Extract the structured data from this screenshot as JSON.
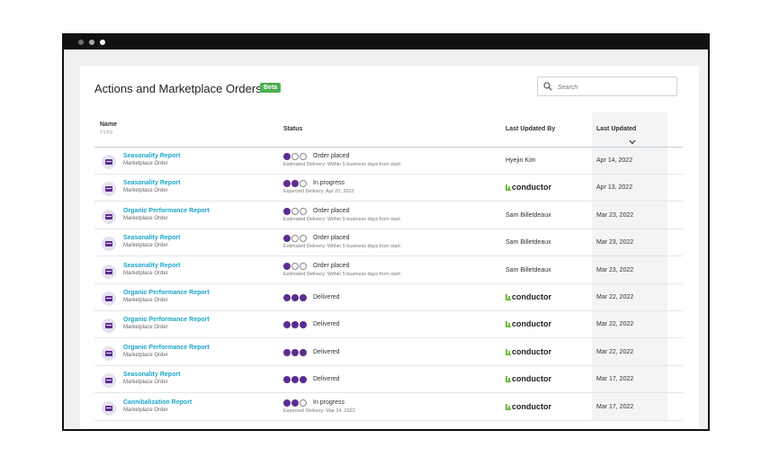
{
  "window": {
    "controls": [
      "close",
      "minimize",
      "maximize"
    ]
  },
  "page": {
    "title": "Actions and Marketplace Orders",
    "badge": "Beta"
  },
  "search": {
    "placeholder": "Search",
    "icon": "search-icon"
  },
  "table": {
    "columns": {
      "name": "Name",
      "type": "TYPE",
      "status": "Status",
      "last_updated_by": "Last Updated By",
      "last_updated": "Last Updated"
    },
    "sorted_by": "Last Updated",
    "rows": [
      {
        "name": "Seasonality Report",
        "type": "Marketplace Order",
        "progress": 1,
        "status": "Order placed",
        "detail": "Estimated Delivery: Within 5 business days from start",
        "updated_by": "Hyejin Kim",
        "updated_by_is_brand": false,
        "date": "Apr 14, 2022"
      },
      {
        "name": "Seasonality Report",
        "type": "Marketplace Order",
        "progress": 2,
        "status": "In progress",
        "detail": "Expected Delivery: Apr 20, 2022",
        "updated_by": "conductor",
        "updated_by_is_brand": true,
        "date": "Apr 13, 2022"
      },
      {
        "name": "Organic Performance Report",
        "type": "Marketplace Order",
        "progress": 1,
        "status": "Order placed",
        "detail": "Estimated Delivery: Within 5 business days from start",
        "updated_by": "Sam Billetdeaux",
        "updated_by_is_brand": false,
        "date": "Mar 23, 2022"
      },
      {
        "name": "Seasonality Report",
        "type": "Marketplace Order",
        "progress": 1,
        "status": "Order placed",
        "detail": "Estimated Delivery: Within 5 business days from start",
        "updated_by": "Sam Billetdeaux",
        "updated_by_is_brand": false,
        "date": "Mar 23, 2022"
      },
      {
        "name": "Seasonality Report",
        "type": "Marketplace Order",
        "progress": 1,
        "status": "Order placed",
        "detail": "Estimated Delivery: Within 5 business days from start",
        "updated_by": "Sam Billetdeaux",
        "updated_by_is_brand": false,
        "date": "Mar 23, 2022"
      },
      {
        "name": "Organic Performance Report",
        "type": "Marketplace Order",
        "progress": 3,
        "status": "Delivered",
        "detail": "",
        "updated_by": "conductor",
        "updated_by_is_brand": true,
        "date": "Mar 22, 2022"
      },
      {
        "name": "Organic Performance Report",
        "type": "Marketplace Order",
        "progress": 3,
        "status": "Delivered",
        "detail": "",
        "updated_by": "conductor",
        "updated_by_is_brand": true,
        "date": "Mar 22, 2022"
      },
      {
        "name": "Organic Performance Report",
        "type": "Marketplace Order",
        "progress": 3,
        "status": "Delivered",
        "detail": "",
        "updated_by": "conductor",
        "updated_by_is_brand": true,
        "date": "Mar 22, 2022"
      },
      {
        "name": "Seasonality Report",
        "type": "Marketplace Order",
        "progress": 3,
        "status": "Delivered",
        "detail": "",
        "updated_by": "conductor",
        "updated_by_is_brand": true,
        "date": "Mar 17, 2022"
      },
      {
        "name": "Cannibalization Report",
        "type": "Marketplace Order",
        "progress": 2,
        "status": "In progress",
        "detail": "Expected Delivery: Mar 24, 2022",
        "updated_by": "conductor",
        "updated_by_is_brand": true,
        "date": "Mar 17, 2022"
      }
    ]
  },
  "colors": {
    "accent_link": "#1ba6c9",
    "progress_on": "#5c2d91",
    "badge": "#4caf50",
    "brand_mark": "#6fbf3f"
  }
}
